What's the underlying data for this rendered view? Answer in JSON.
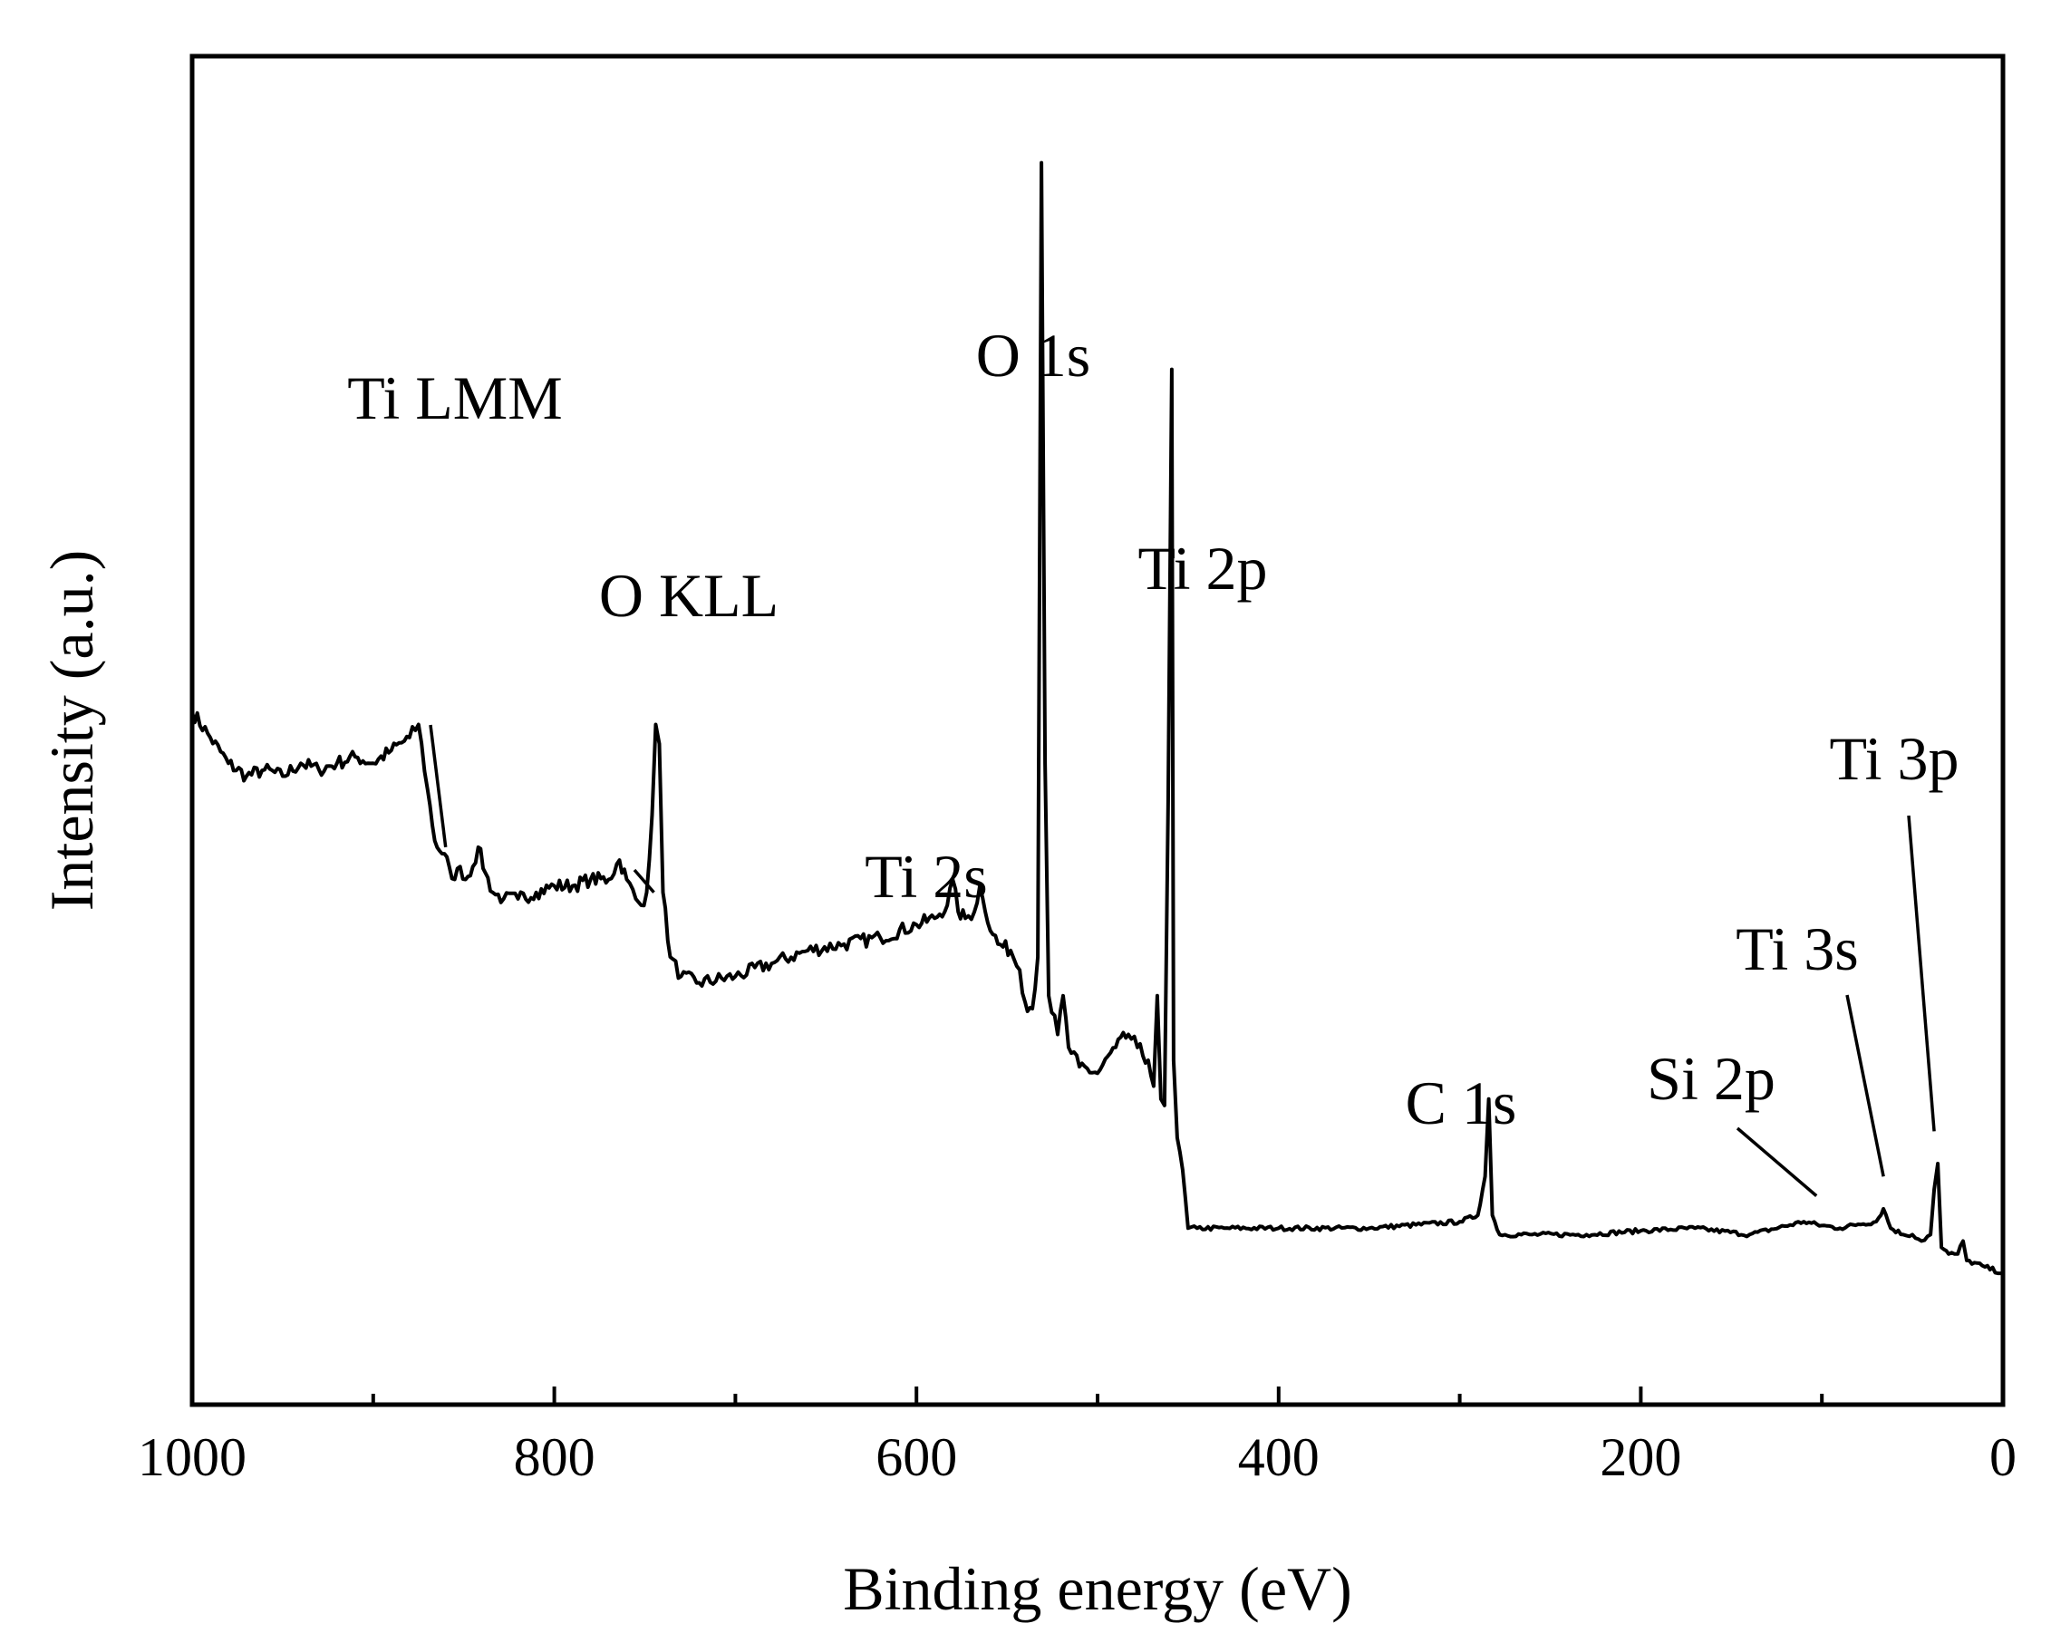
{
  "chart_data": {
    "type": "line",
    "title": "",
    "xlabel": "Binding energy (eV)",
    "ylabel": "Intensity (a.u.)",
    "x_reversed": true,
    "xlim": [
      1000,
      0
    ],
    "ylim": [
      0,
      100
    ],
    "xticks_major": [
      1000,
      800,
      600,
      400,
      200,
      0
    ],
    "xticks_minor": [
      900,
      700,
      500,
      300,
      100
    ],
    "yticks": [],
    "grid": false,
    "line_color": "#000000",
    "series": [
      {
        "points": [
          [
            1000,
            47
          ],
          [
            990,
            45
          ],
          [
            980,
            43
          ],
          [
            970,
            42
          ],
          [
            960,
            42.5
          ],
          [
            950,
            42
          ],
          [
            940,
            43
          ],
          [
            930,
            42.5
          ],
          [
            920,
            43
          ],
          [
            910,
            43.5
          ],
          [
            900,
            43
          ],
          [
            890,
            44
          ],
          [
            880,
            45
          ],
          [
            875,
            46
          ],
          [
            870,
            41
          ],
          [
            866,
            37
          ],
          [
            862,
            36
          ],
          [
            858,
            35
          ],
          [
            855,
            34
          ],
          [
            852,
            35
          ],
          [
            849,
            34
          ],
          [
            845,
            35
          ],
          [
            842,
            36.5
          ],
          [
            838,
            34.5
          ],
          [
            834,
            33
          ],
          [
            828,
            32.5
          ],
          [
            820,
            32.5
          ],
          [
            810,
            33
          ],
          [
            800,
            33.5
          ],
          [
            790,
            33.5
          ],
          [
            780,
            34
          ],
          [
            770,
            34
          ],
          [
            764,
            35.5
          ],
          [
            760,
            34
          ],
          [
            755,
            32.5
          ],
          [
            752,
            32
          ],
          [
            749,
            33
          ],
          [
            746,
            39
          ],
          [
            744,
            46
          ],
          [
            742,
            44.5
          ],
          [
            740,
            33
          ],
          [
            736,
            28
          ],
          [
            730,
            26.5
          ],
          [
            720,
            26
          ],
          [
            700,
            26.5
          ],
          [
            680,
            27.5
          ],
          [
            660,
            28.5
          ],
          [
            640,
            29
          ],
          [
            620,
            29.5
          ],
          [
            600,
            30.5
          ],
          [
            590,
            31
          ],
          [
            583,
            32
          ],
          [
            580,
            34
          ],
          [
            577,
            31.5
          ],
          [
            573,
            31
          ],
          [
            568,
            31.5
          ],
          [
            565,
            33.5
          ],
          [
            562,
            31.5
          ],
          [
            555,
            29
          ],
          [
            548,
            28.5
          ],
          [
            543,
            27
          ],
          [
            540,
            24.5
          ],
          [
            536,
            24
          ],
          [
            533,
            28
          ],
          [
            531,
            89.5
          ],
          [
            529,
            43
          ],
          [
            527,
            25
          ],
          [
            522,
            22
          ],
          [
            519,
            25
          ],
          [
            516,
            21
          ],
          [
            510,
            19.5
          ],
          [
            500,
            19
          ],
          [
            490,
            21
          ],
          [
            483,
            22
          ],
          [
            478,
            21
          ],
          [
            472,
            20
          ],
          [
            469,
            18
          ],
          [
            467,
            25
          ],
          [
            465,
            17
          ],
          [
            463,
            16.5
          ],
          [
            461,
            40
          ],
          [
            459,
            73.5
          ],
          [
            458,
            20
          ],
          [
            456,
            14
          ],
          [
            453,
            11.5
          ],
          [
            450,
            7
          ],
          [
            445,
            7
          ],
          [
            430,
            7
          ],
          [
            400,
            7
          ],
          [
            350,
            7
          ],
          [
            300,
            7.5
          ],
          [
            290,
            8
          ],
          [
            286,
            11
          ],
          [
            284,
            17
          ],
          [
            282,
            8
          ],
          [
            278,
            6.5
          ],
          [
            260,
            6.5
          ],
          [
            230,
            6.5
          ],
          [
            200,
            6.8
          ],
          [
            170,
            7
          ],
          [
            140,
            6.5
          ],
          [
            110,
            7.5
          ],
          [
            100,
            7.2
          ],
          [
            90,
            7
          ],
          [
            80,
            7.3
          ],
          [
            70,
            7.5
          ],
          [
            66,
            8.5
          ],
          [
            62,
            7
          ],
          [
            55,
            6.5
          ],
          [
            50,
            6.5
          ],
          [
            45,
            6
          ],
          [
            40,
            6.5
          ],
          [
            38,
            10
          ],
          [
            36,
            12
          ],
          [
            34,
            5.5
          ],
          [
            30,
            5
          ],
          [
            25,
            5
          ],
          [
            22,
            6
          ],
          [
            20,
            4.5
          ],
          [
            10,
            4
          ],
          [
            0,
            3.5
          ]
        ]
      }
    ],
    "annotations": [
      {
        "text": "Ti LMM",
        "x": 860
      },
      {
        "text": "O KLL",
        "x": 745
      },
      {
        "text": "O 1s",
        "x": 531
      },
      {
        "text": "Ti 2p",
        "x": 459
      },
      {
        "text": "Ti 2s",
        "x": 573
      },
      {
        "text": "C 1s",
        "x": 284
      },
      {
        "text": "Si 2p",
        "x": 103
      },
      {
        "text": "Ti 3s",
        "x": 66
      },
      {
        "text": "Ti 3p",
        "x": 38
      }
    ]
  }
}
